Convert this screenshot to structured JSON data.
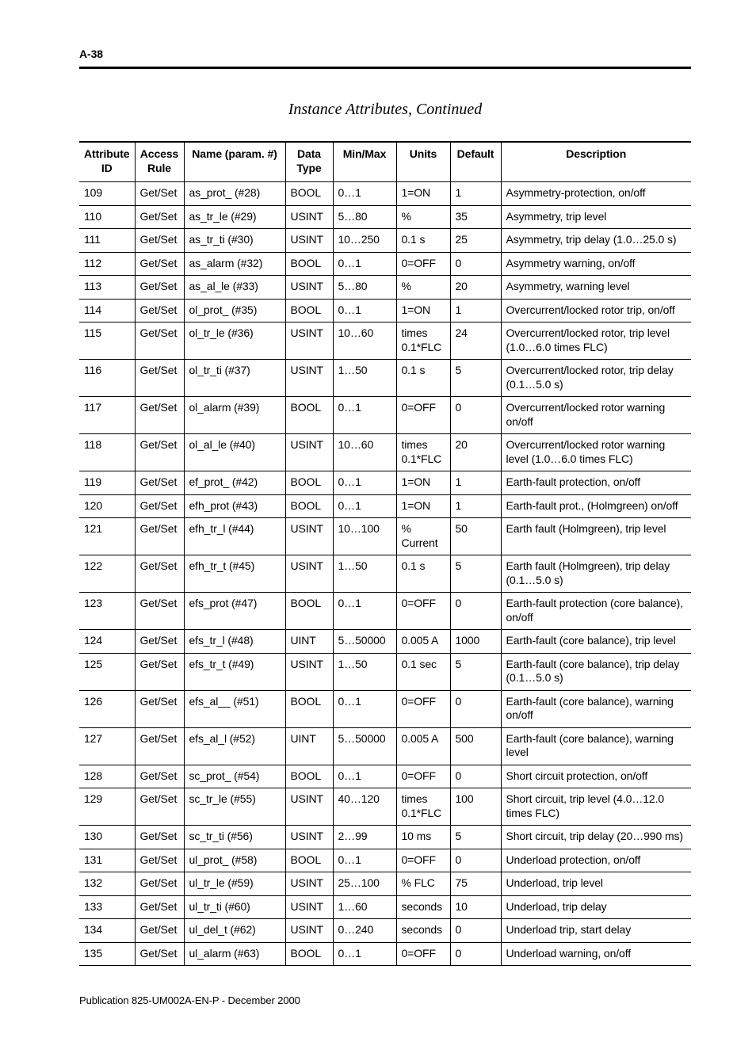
{
  "header": {
    "page_number": "A-38"
  },
  "title": "Instance Attributes, Continued",
  "columns": [
    "Attribute ID",
    "Access Rule",
    "Name (param. #)",
    "Data Type",
    "Min/Max",
    "Units",
    "Default",
    "Description"
  ],
  "rows": [
    [
      "109",
      "Get/Set",
      "as_prot_ (#28)",
      "BOOL",
      "0…1",
      "1=ON",
      "1",
      "Asymmetry-protection, on/off"
    ],
    [
      "110",
      "Get/Set",
      "as_tr_le (#29)",
      "USINT",
      "5…80",
      "%",
      "35",
      "Asymmetry, trip level"
    ],
    [
      "111",
      "Get/Set",
      "as_tr_ti (#30)",
      "USINT",
      "10…250",
      "0.1 s",
      "25",
      "Asymmetry, trip delay (1.0…25.0 s)"
    ],
    [
      "112",
      "Get/Set",
      "as_alarm (#32)",
      "BOOL",
      "0…1",
      "0=OFF",
      "0",
      "Asymmetry warning, on/off"
    ],
    [
      "113",
      "Get/Set",
      "as_al_le (#33)",
      "USINT",
      "5…80",
      "%",
      "20",
      "Asymmetry, warning level"
    ],
    [
      "114",
      "Get/Set",
      "ol_prot_ (#35)",
      "BOOL",
      "0…1",
      "1=ON",
      "1",
      "Overcurrent/locked rotor trip, on/off"
    ],
    [
      "115",
      "Get/Set",
      "ol_tr_le (#36)",
      "USINT",
      "10…60",
      "times 0.1*FLC",
      "24",
      "Overcurrent/locked rotor, trip level (1.0…6.0 times FLC)"
    ],
    [
      "116",
      "Get/Set",
      "ol_tr_ti (#37)",
      "USINT",
      "1…50",
      "0.1 s",
      "5",
      "Overcurrent/locked rotor, trip delay (0.1…5.0 s)"
    ],
    [
      "117",
      "Get/Set",
      "ol_alarm (#39)",
      "BOOL",
      "0…1",
      "0=OFF",
      "0",
      "Overcurrent/locked rotor warning on/off"
    ],
    [
      "118",
      "Get/Set",
      "ol_al_le (#40)",
      "USINT",
      "10…60",
      "times 0.1*FLC",
      "20",
      "Overcurrent/locked rotor warning level (1.0…6.0 times FLC)"
    ],
    [
      "119",
      "Get/Set",
      "ef_prot_ (#42)",
      "BOOL",
      "0…1",
      "1=ON",
      "1",
      "Earth-fault protection, on/off"
    ],
    [
      "120",
      "Get/Set",
      "efh_prot (#43)",
      "BOOL",
      "0…1",
      "1=ON",
      "1",
      "Earth-fault prot., (Holmgreen) on/off"
    ],
    [
      "121",
      "Get/Set",
      "efh_tr_l (#44)",
      "USINT",
      "10…100",
      "% Current",
      "50",
      "Earth fault (Holmgreen), trip level"
    ],
    [
      "122",
      "Get/Set",
      "efh_tr_t (#45)",
      "USINT",
      "1…50",
      "0.1 s",
      "5",
      "Earth fault (Holmgreen), trip delay (0.1…5.0 s)"
    ],
    [
      "123",
      "Get/Set",
      "efs_prot (#47)",
      "BOOL",
      "0…1",
      "0=OFF",
      "0",
      "Earth-fault protection (core balance), on/off"
    ],
    [
      "124",
      "Get/Set",
      "efs_tr_l (#48)",
      "UINT",
      "5…50000",
      "0.005 A",
      "1000",
      "Earth-fault (core balance), trip level"
    ],
    [
      "125",
      "Get/Set",
      "efs_tr_t (#49)",
      "USINT",
      "1…50",
      "0.1 sec",
      "5",
      "Earth-fault (core balance), trip delay (0.1…5.0 s)"
    ],
    [
      "126",
      "Get/Set",
      "efs_al__ (#51)",
      "BOOL",
      "0…1",
      "0=OFF",
      "0",
      "Earth-fault (core balance), warning on/off"
    ],
    [
      "127",
      "Get/Set",
      "efs_al_l (#52)",
      "UINT",
      "5…50000",
      "0.005 A",
      "500",
      "Earth-fault (core balance), warning level"
    ],
    [
      "128",
      "Get/Set",
      "sc_prot_ (#54)",
      "BOOL",
      "0…1",
      "0=OFF",
      "0",
      "Short circuit protection, on/off"
    ],
    [
      "129",
      "Get/Set",
      "sc_tr_le (#55)",
      "USINT",
      "40…120",
      "times 0.1*FLC",
      "100",
      "Short circuit, trip level (4.0…12.0 times FLC)"
    ],
    [
      "130",
      "Get/Set",
      "sc_tr_ti (#56)",
      "USINT",
      "2…99",
      "10 ms",
      "5",
      "Short circuit, trip delay (20…990 ms)"
    ],
    [
      "131",
      "Get/Set",
      "ul_prot_ (#58)",
      "BOOL",
      "0…1",
      "0=OFF",
      "0",
      "Underload protection, on/off"
    ],
    [
      "132",
      "Get/Set",
      "ul_tr_le (#59)",
      "USINT",
      "25…100",
      "% FLC",
      "75",
      "Underload, trip level"
    ],
    [
      "133",
      "Get/Set",
      "ul_tr_ti (#60)",
      "USINT",
      "1…60",
      "seconds",
      "10",
      "Underload, trip delay"
    ],
    [
      "134",
      "Get/Set",
      "ul_del_t (#62)",
      "USINT",
      "0…240",
      "seconds",
      "0",
      "Underload trip, start delay"
    ],
    [
      "135",
      "Get/Set",
      "ul_alarm (#63)",
      "BOOL",
      "0…1",
      "0=OFF",
      "0",
      "Underload warning, on/off"
    ]
  ],
  "footer": {
    "publication": "Publication 825-UM002A-EN-P - December 2000"
  }
}
